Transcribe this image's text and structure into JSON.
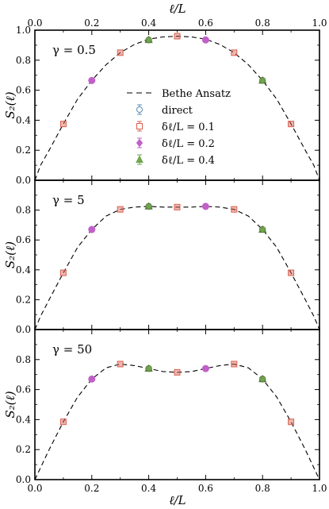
{
  "figure": {
    "top_axis_label": "ℓ/L",
    "bottom_axis_label": "ℓ/L",
    "x_tick_labels": [
      "0.0",
      "0.2",
      "0.4",
      "0.6",
      "0.8",
      "1.0"
    ]
  },
  "legend": {
    "entries": [
      {
        "label": "Bethe Ansatz",
        "style": "dashed-line"
      },
      {
        "label": "direct",
        "style": "circle",
        "color": "#5b8db8"
      },
      {
        "label": "δℓ/L = 0.1",
        "style": "square",
        "color": "#d9604f"
      },
      {
        "label": "δℓ/L = 0.2",
        "style": "diamond",
        "color": "#c060c8"
      },
      {
        "label": "δℓ/L = 0.4",
        "style": "triangle",
        "color": "#6fa64e"
      }
    ]
  },
  "chart_data": [
    {
      "type": "line",
      "panel_label": "γ = 0.5",
      "ylabel": "S₂(ℓ)",
      "xlim": [
        0,
        1
      ],
      "ylim": [
        0,
        1.0
      ],
      "y_tick_labels": [
        "0.0",
        "0.2",
        "0.4",
        "0.6",
        "0.8",
        "1.0"
      ],
      "curve": {
        "x": [
          0.0,
          0.02,
          0.05,
          0.1,
          0.15,
          0.2,
          0.25,
          0.3,
          0.35,
          0.4,
          0.45,
          0.5,
          0.55,
          0.6,
          0.65,
          0.7,
          0.75,
          0.8,
          0.85,
          0.9,
          0.95,
          0.98,
          1.0
        ],
        "y": [
          0.0,
          0.1,
          0.2,
          0.375,
          0.54,
          0.665,
          0.77,
          0.85,
          0.905,
          0.94,
          0.955,
          0.96,
          0.955,
          0.94,
          0.905,
          0.85,
          0.77,
          0.665,
          0.54,
          0.375,
          0.2,
          0.1,
          0.0
        ]
      },
      "points": [
        {
          "x": 0.1,
          "y": 0.375,
          "marker": "square"
        },
        {
          "x": 0.2,
          "y": 0.665,
          "marker": "diamond"
        },
        {
          "x": 0.3,
          "y": 0.85,
          "marker": "square"
        },
        {
          "x": 0.4,
          "y": 0.935,
          "marker": "triangle"
        },
        {
          "x": 0.5,
          "y": 0.96,
          "marker": "square"
        },
        {
          "x": 0.6,
          "y": 0.935,
          "marker": "diamond"
        },
        {
          "x": 0.7,
          "y": 0.85,
          "marker": "square"
        },
        {
          "x": 0.8,
          "y": 0.665,
          "marker": "triangle"
        },
        {
          "x": 0.9,
          "y": 0.375,
          "marker": "square"
        }
      ]
    },
    {
      "type": "line",
      "panel_label": "γ = 5",
      "ylabel": "S₂(ℓ)",
      "xlim": [
        0,
        1
      ],
      "ylim": [
        0,
        1.0
      ],
      "y_tick_labels": [
        "0.0",
        "0.2",
        "0.4",
        "0.6",
        "0.8"
      ],
      "curve": {
        "x": [
          0.0,
          0.02,
          0.05,
          0.1,
          0.15,
          0.2,
          0.25,
          0.3,
          0.35,
          0.4,
          0.45,
          0.5,
          0.55,
          0.6,
          0.65,
          0.7,
          0.75,
          0.8,
          0.85,
          0.9,
          0.95,
          0.98,
          1.0
        ],
        "y": [
          0.0,
          0.09,
          0.2,
          0.38,
          0.55,
          0.67,
          0.76,
          0.805,
          0.82,
          0.825,
          0.82,
          0.82,
          0.82,
          0.825,
          0.82,
          0.805,
          0.76,
          0.67,
          0.55,
          0.38,
          0.2,
          0.09,
          0.0
        ]
      },
      "points": [
        {
          "x": 0.1,
          "y": 0.38,
          "marker": "square"
        },
        {
          "x": 0.2,
          "y": 0.67,
          "marker": "diamond"
        },
        {
          "x": 0.3,
          "y": 0.805,
          "marker": "square"
        },
        {
          "x": 0.4,
          "y": 0.825,
          "marker": "triangle"
        },
        {
          "x": 0.5,
          "y": 0.82,
          "marker": "square"
        },
        {
          "x": 0.6,
          "y": 0.825,
          "marker": "diamond"
        },
        {
          "x": 0.7,
          "y": 0.805,
          "marker": "square"
        },
        {
          "x": 0.8,
          "y": 0.67,
          "marker": "triangle"
        },
        {
          "x": 0.9,
          "y": 0.38,
          "marker": "square"
        }
      ]
    },
    {
      "type": "line",
      "panel_label": "γ = 50",
      "ylabel": "S₂(ℓ)",
      "xlim": [
        0,
        1
      ],
      "ylim": [
        0,
        1.0
      ],
      "y_tick_labels": [
        "0.0",
        "0.2",
        "0.4",
        "0.6",
        "0.8"
      ],
      "curve": {
        "x": [
          0.0,
          0.02,
          0.05,
          0.1,
          0.15,
          0.2,
          0.25,
          0.3,
          0.35,
          0.4,
          0.45,
          0.5,
          0.55,
          0.6,
          0.65,
          0.7,
          0.75,
          0.8,
          0.85,
          0.9,
          0.95,
          0.98,
          1.0
        ],
        "y": [
          0.0,
          0.08,
          0.2,
          0.385,
          0.55,
          0.67,
          0.745,
          0.77,
          0.76,
          0.74,
          0.72,
          0.715,
          0.72,
          0.74,
          0.76,
          0.77,
          0.745,
          0.67,
          0.55,
          0.385,
          0.2,
          0.08,
          0.0
        ]
      },
      "points": [
        {
          "x": 0.1,
          "y": 0.385,
          "marker": "square"
        },
        {
          "x": 0.2,
          "y": 0.67,
          "marker": "diamond"
        },
        {
          "x": 0.3,
          "y": 0.77,
          "marker": "square"
        },
        {
          "x": 0.4,
          "y": 0.74,
          "marker": "triangle"
        },
        {
          "x": 0.5,
          "y": 0.715,
          "marker": "square"
        },
        {
          "x": 0.6,
          "y": 0.74,
          "marker": "diamond"
        },
        {
          "x": 0.7,
          "y": 0.77,
          "marker": "square"
        },
        {
          "x": 0.8,
          "y": 0.67,
          "marker": "triangle"
        },
        {
          "x": 0.9,
          "y": 0.385,
          "marker": "square"
        }
      ]
    }
  ]
}
